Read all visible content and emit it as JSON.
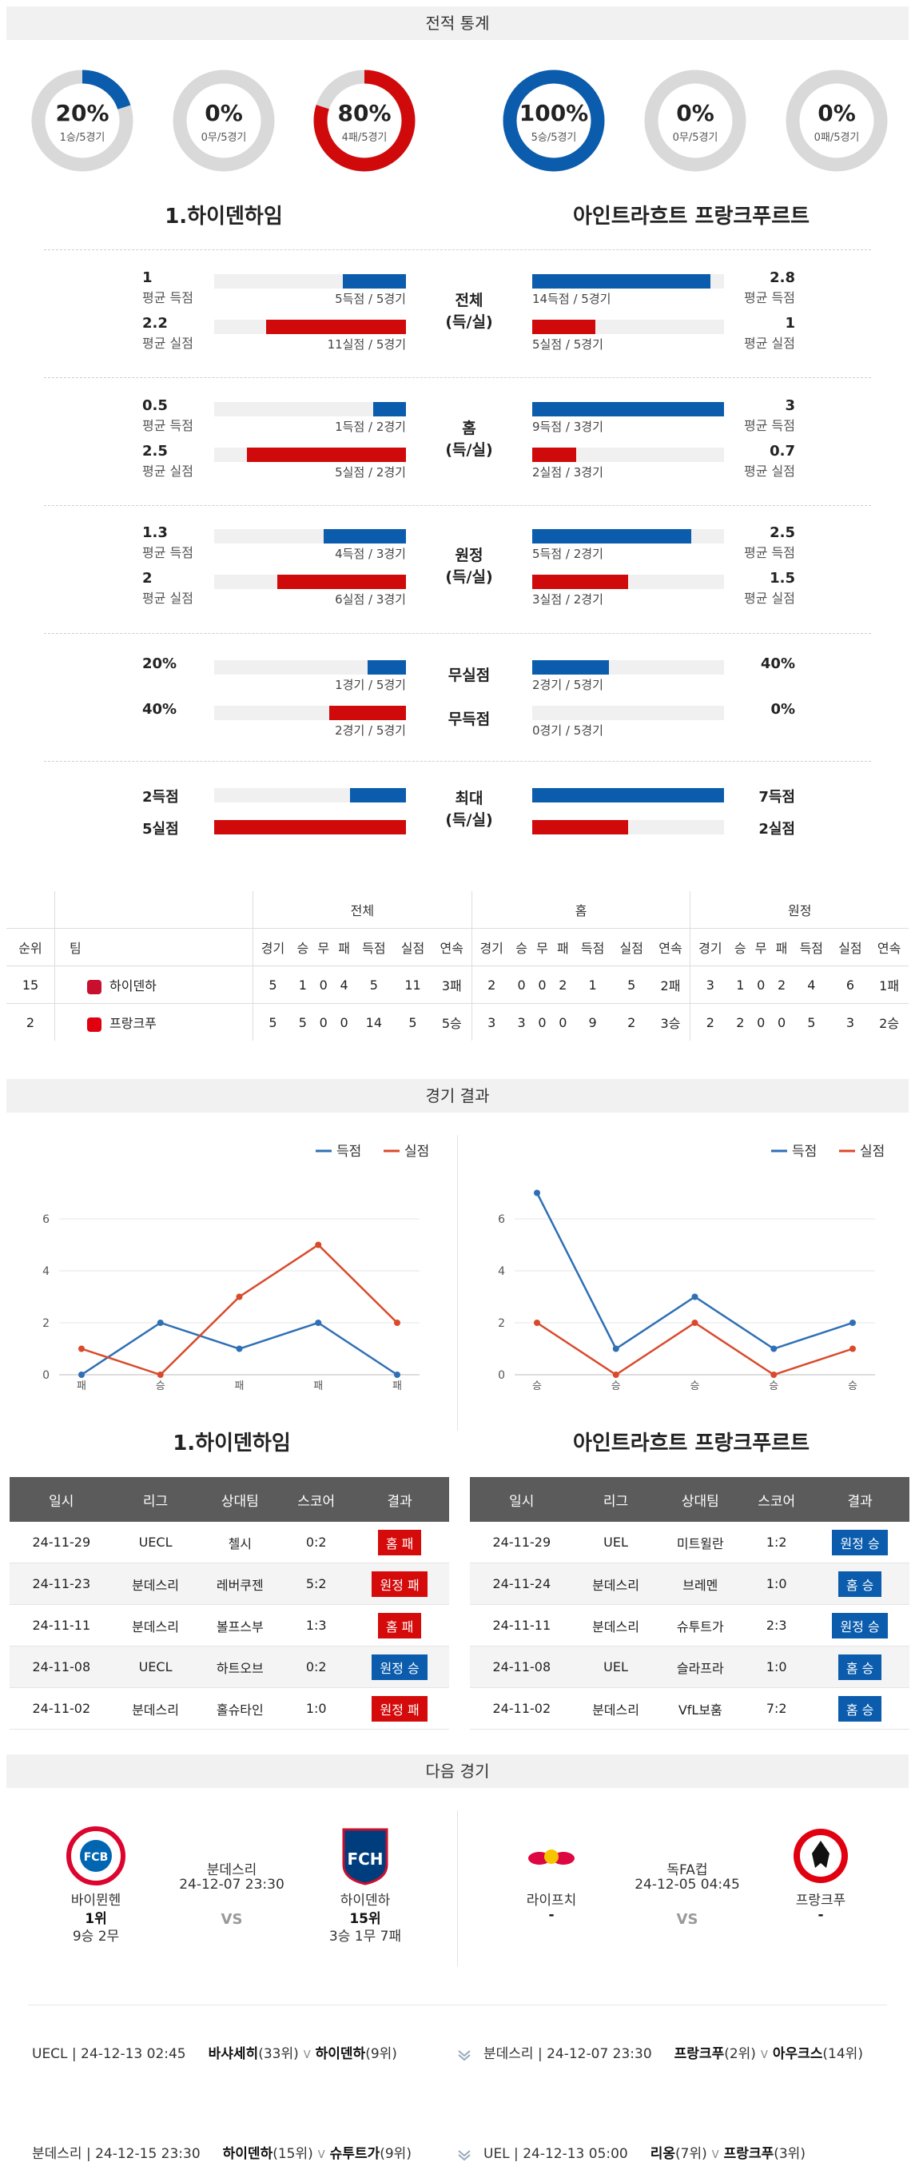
{
  "sections": {
    "record": "전적 통계",
    "results": "경기 결과",
    "next": "다음 경기"
  },
  "donuts": [
    {
      "pct": "20%",
      "sub": "1승/5경기",
      "value": 0.2,
      "color": "#0b5cad"
    },
    {
      "pct": "0%",
      "sub": "0무/5경기",
      "value": 0,
      "color": "#888888"
    },
    {
      "pct": "80%",
      "sub": "4패/5경기",
      "value": 0.8,
      "color": "#d00a0a"
    },
    {
      "pct": "100%",
      "sub": "5승/5경기",
      "value": 1.0,
      "color": "#0b5cad"
    },
    {
      "pct": "0%",
      "sub": "0무/5경기",
      "value": 0,
      "color": "#888888"
    },
    {
      "pct": "0%",
      "sub": "0패/5경기",
      "value": 0,
      "color": "#d00a0a"
    }
  ],
  "teams": {
    "home": "1.하이덴하임",
    "away": "아인트라흐트 프랑크푸르트"
  },
  "stat_groups": [
    {
      "label1": "전체",
      "label2": "(득/실)",
      "home": [
        {
          "val": "1",
          "lbl": "평균 득점",
          "cap": "5득점 / 5경기",
          "fill": 0.33,
          "color": "blue"
        },
        {
          "val": "2.2",
          "lbl": "평균 실점",
          "cap": "11실점 / 5경기",
          "fill": 0.73,
          "color": "red"
        }
      ],
      "away": [
        {
          "val": "2.8",
          "lbl": "평균 득점",
          "cap": "14득점 / 5경기",
          "fill": 0.93,
          "color": "blue"
        },
        {
          "val": "1",
          "lbl": "평균 실점",
          "cap": "5실점 / 5경기",
          "fill": 0.33,
          "color": "red"
        }
      ]
    },
    {
      "label1": "홈",
      "label2": "(득/실)",
      "home": [
        {
          "val": "0.5",
          "lbl": "평균 득점",
          "cap": "1득점 / 2경기",
          "fill": 0.17,
          "color": "blue"
        },
        {
          "val": "2.5",
          "lbl": "평균 실점",
          "cap": "5실점 / 2경기",
          "fill": 0.83,
          "color": "red"
        }
      ],
      "away": [
        {
          "val": "3",
          "lbl": "평균 득점",
          "cap": "9득점 / 3경기",
          "fill": 1.0,
          "color": "blue"
        },
        {
          "val": "0.7",
          "lbl": "평균 실점",
          "cap": "2실점 / 3경기",
          "fill": 0.23,
          "color": "red"
        }
      ]
    },
    {
      "label1": "원정",
      "label2": "(득/실)",
      "home": [
        {
          "val": "1.3",
          "lbl": "평균 득점",
          "cap": "4득점 / 3경기",
          "fill": 0.43,
          "color": "blue"
        },
        {
          "val": "2",
          "lbl": "평균 실점",
          "cap": "6실점 / 3경기",
          "fill": 0.67,
          "color": "red"
        }
      ],
      "away": [
        {
          "val": "2.5",
          "lbl": "평균 득점",
          "cap": "5득점 / 2경기",
          "fill": 0.83,
          "color": "blue"
        },
        {
          "val": "1.5",
          "lbl": "평균 실점",
          "cap": "3실점 / 2경기",
          "fill": 0.5,
          "color": "red"
        }
      ]
    }
  ],
  "zero_group": {
    "label_a": "무실점",
    "label_b": "무득점",
    "home": [
      {
        "val": "20%",
        "cap": "1경기 / 5경기",
        "fill": 0.2,
        "color": "blue"
      },
      {
        "val": "40%",
        "cap": "2경기 / 5경기",
        "fill": 0.4,
        "color": "red"
      }
    ],
    "away": [
      {
        "val": "40%",
        "cap": "2경기 / 5경기",
        "fill": 0.4,
        "color": "blue"
      },
      {
        "val": "0%",
        "cap": "0경기 / 5경기",
        "fill": 0,
        "color": "red"
      }
    ]
  },
  "max_group": {
    "label1": "최대",
    "label2": "(득/실)",
    "home": [
      {
        "val": "2득점",
        "fill": 0.29,
        "color": "blue"
      },
      {
        "val": "5실점",
        "fill": 1.0,
        "color": "red"
      }
    ],
    "away": [
      {
        "val": "7득점",
        "fill": 1.0,
        "color": "blue"
      },
      {
        "val": "2실점",
        "fill": 0.5,
        "color": "red"
      }
    ]
  },
  "standings": {
    "groups": [
      "전체",
      "홈",
      "원정"
    ],
    "cols": [
      "경기",
      "승",
      "무",
      "패",
      "득점",
      "실점",
      "연속"
    ],
    "rank_h": "순위",
    "team_h": "팀",
    "rows": [
      {
        "rank": "15",
        "team": "하이덴하",
        "crest": "#c8102e",
        "all": [
          "5",
          "1",
          "0",
          "4",
          "5",
          "11",
          "3패"
        ],
        "home": [
          "2",
          "0",
          "0",
          "2",
          "1",
          "5",
          "2패"
        ],
        "away": [
          "3",
          "1",
          "0",
          "2",
          "4",
          "6",
          "1패"
        ]
      },
      {
        "rank": "2",
        "team": "프랑크푸",
        "crest": "#e1000f",
        "all": [
          "5",
          "5",
          "0",
          "0",
          "14",
          "5",
          "5승"
        ],
        "home": [
          "3",
          "3",
          "0",
          "0",
          "9",
          "2",
          "3승"
        ],
        "away": [
          "2",
          "2",
          "0",
          "0",
          "5",
          "3",
          "2승"
        ]
      }
    ]
  },
  "legend": {
    "scored": "득점",
    "conceded": "실점",
    "scored_color": "#2e6fb5",
    "conceded_color": "#d94a2b"
  },
  "chart_data": [
    {
      "type": "line",
      "categories": [
        "패",
        "승",
        "패",
        "패",
        "패"
      ],
      "series": [
        {
          "name": "득점",
          "values": [
            0,
            2,
            1,
            2,
            0
          ]
        },
        {
          "name": "실점",
          "values": [
            1,
            0,
            3,
            5,
            2
          ]
        }
      ],
      "yticks": [
        "0",
        "2",
        "4",
        "6"
      ],
      "ylim": [
        0,
        6
      ]
    },
    {
      "type": "line",
      "categories": [
        "승",
        "승",
        "승",
        "승",
        "승"
      ],
      "series": [
        {
          "name": "득점",
          "values": [
            7,
            1,
            3,
            1,
            2
          ]
        },
        {
          "name": "실점",
          "values": [
            2,
            0,
            2,
            0,
            1
          ]
        }
      ],
      "yticks": [
        "0",
        "2",
        "4",
        "6"
      ],
      "ylim": [
        0,
        6
      ]
    }
  ],
  "results_header": [
    "일시",
    "리그",
    "상대팀",
    "스코어",
    "결과"
  ],
  "home_results": [
    {
      "date": "24-11-29",
      "league": "UECL",
      "opp": "첼시",
      "score": "0:2",
      "res": "홈 패",
      "color": "red"
    },
    {
      "date": "24-11-23",
      "league": "분데스리",
      "opp": "레버쿠젠",
      "score": "5:2",
      "res": "원정 패",
      "color": "red"
    },
    {
      "date": "24-11-11",
      "league": "분데스리",
      "opp": "볼프스부",
      "score": "1:3",
      "res": "홈 패",
      "color": "red"
    },
    {
      "date": "24-11-08",
      "league": "UECL",
      "opp": "하트오브",
      "score": "0:2",
      "res": "원정 승",
      "color": "blue"
    },
    {
      "date": "24-11-02",
      "league": "분데스리",
      "opp": "홀슈타인",
      "score": "1:0",
      "res": "원정 패",
      "color": "red"
    }
  ],
  "away_results": [
    {
      "date": "24-11-29",
      "league": "UEL",
      "opp": "미트윌란",
      "score": "1:2",
      "res": "원정 승",
      "color": "blue"
    },
    {
      "date": "24-11-24",
      "league": "분데스리",
      "opp": "브레멘",
      "score": "1:0",
      "res": "홈 승",
      "color": "blue"
    },
    {
      "date": "24-11-11",
      "league": "분데스리",
      "opp": "슈투트가",
      "score": "2:3",
      "res": "원정 승",
      "color": "blue"
    },
    {
      "date": "24-11-08",
      "league": "UEL",
      "opp": "슬라프라",
      "score": "1:0",
      "res": "홈 승",
      "color": "blue"
    },
    {
      "date": "24-11-02",
      "league": "분데스리",
      "opp": "VfL보훔",
      "score": "7:2",
      "res": "홈 승",
      "color": "blue"
    }
  ],
  "next_matches": [
    {
      "league": "분데스리",
      "time": "24-12-07 23:30",
      "vs": "VS",
      "t1": {
        "name": "바이뮌헨",
        "rank": "1위",
        "rec": "9승 2무",
        "logo": "FCB"
      },
      "t2": {
        "name": "하이덴하",
        "rank": "15위",
        "rec": "3승 1무 7패",
        "logo": "FCH"
      }
    },
    {
      "league": "독FA컵",
      "time": "24-12-05 04:45",
      "vs": "VS",
      "t1": {
        "name": "라이프치",
        "rank": "-",
        "rec": "",
        "logo": "RB"
      },
      "t2": {
        "name": "프랑크푸",
        "rank": "-",
        "rec": "",
        "logo": "SGE"
      }
    }
  ],
  "upcoming": [
    {
      "left": "UECL | 24-12-13 02:45",
      "t1": "바샤세히",
      "r1": "(33위)",
      "sep": "V",
      "t2": "하이덴하",
      "r2": "(9위)"
    },
    {
      "left": "분데스리 | 24-12-07 23:30",
      "t1": "프랑크푸",
      "r1": "(2위)",
      "sep": "V",
      "t2": "아우크스",
      "r2": "(14위)"
    },
    {
      "left": "분데스리 | 24-12-15 23:30",
      "t1": "하이덴하",
      "r1": "(15위)",
      "sep": "V",
      "t2": "슈투트가",
      "r2": "(9위)"
    },
    {
      "left": "UEL | 24-12-13 05:00",
      "t1": "리옹",
      "r1": "(7위)",
      "sep": "V",
      "t2": "프랑크푸",
      "r2": "(3위)"
    }
  ]
}
